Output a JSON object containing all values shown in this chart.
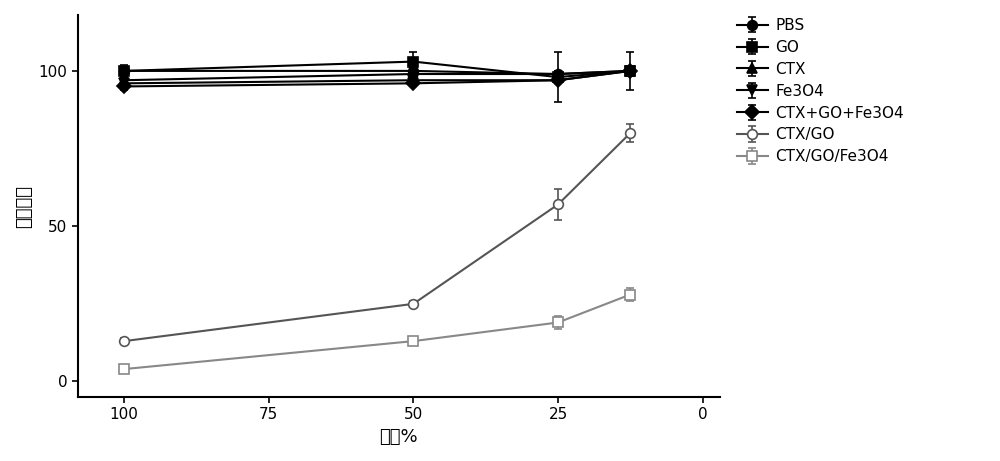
{
  "title": "",
  "xlabel": "梯度%",
  "ylabel": "细胞活力",
  "x_values": [
    100,
    50,
    25,
    12.5
  ],
  "x_ticks": [
    100,
    75,
    50,
    25,
    0
  ],
  "x_tick_labels": [
    "100",
    "75",
    "50",
    "25",
    "0"
  ],
  "xlim": [
    108,
    -3
  ],
  "ylim": [
    -5,
    118
  ],
  "y_ticks": [
    0,
    50,
    100
  ],
  "series": [
    {
      "label": "PBS",
      "y": [
        100,
        100,
        99,
        100
      ],
      "yerr": [
        1,
        1,
        1,
        1
      ],
      "color": "#000000",
      "marker": "o",
      "marker_filled": true,
      "linestyle": "-"
    },
    {
      "label": "GO",
      "y": [
        100,
        103,
        98,
        100
      ],
      "yerr": [
        2,
        3,
        8,
        6
      ],
      "color": "#000000",
      "marker": "s",
      "marker_filled": true,
      "linestyle": "-"
    },
    {
      "label": "CTX",
      "y": [
        97,
        99,
        99,
        100
      ],
      "yerr": [
        1,
        1,
        1,
        1
      ],
      "color": "#000000",
      "marker": "^",
      "marker_filled": true,
      "linestyle": "-"
    },
    {
      "label": "Fe3O4",
      "y": [
        96,
        97,
        97,
        100
      ],
      "yerr": [
        1,
        1,
        1,
        1
      ],
      "color": "#000000",
      "marker": "v",
      "marker_filled": true,
      "linestyle": "-"
    },
    {
      "label": "CTX+GO+Fe3O4",
      "y": [
        95,
        96,
        97,
        100
      ],
      "yerr": [
        1,
        1,
        1,
        1
      ],
      "color": "#000000",
      "marker": "D",
      "marker_filled": true,
      "linestyle": "-"
    },
    {
      "label": "CTX/GO",
      "y": [
        13,
        25,
        57,
        80
      ],
      "yerr": [
        1,
        1,
        5,
        3
      ],
      "color": "#555555",
      "marker": "o",
      "marker_filled": false,
      "linestyle": "-"
    },
    {
      "label": "CTX/GO/Fe3O4",
      "y": [
        4,
        13,
        19,
        28
      ],
      "yerr": [
        1,
        1,
        2,
        2
      ],
      "color": "#888888",
      "marker": "s",
      "marker_filled": false,
      "linestyle": "-"
    }
  ],
  "legend_fontsize": 11,
  "tick_fontsize": 11,
  "axis_label_fontsize": 13,
  "line_width": 1.5,
  "marker_size": 7
}
